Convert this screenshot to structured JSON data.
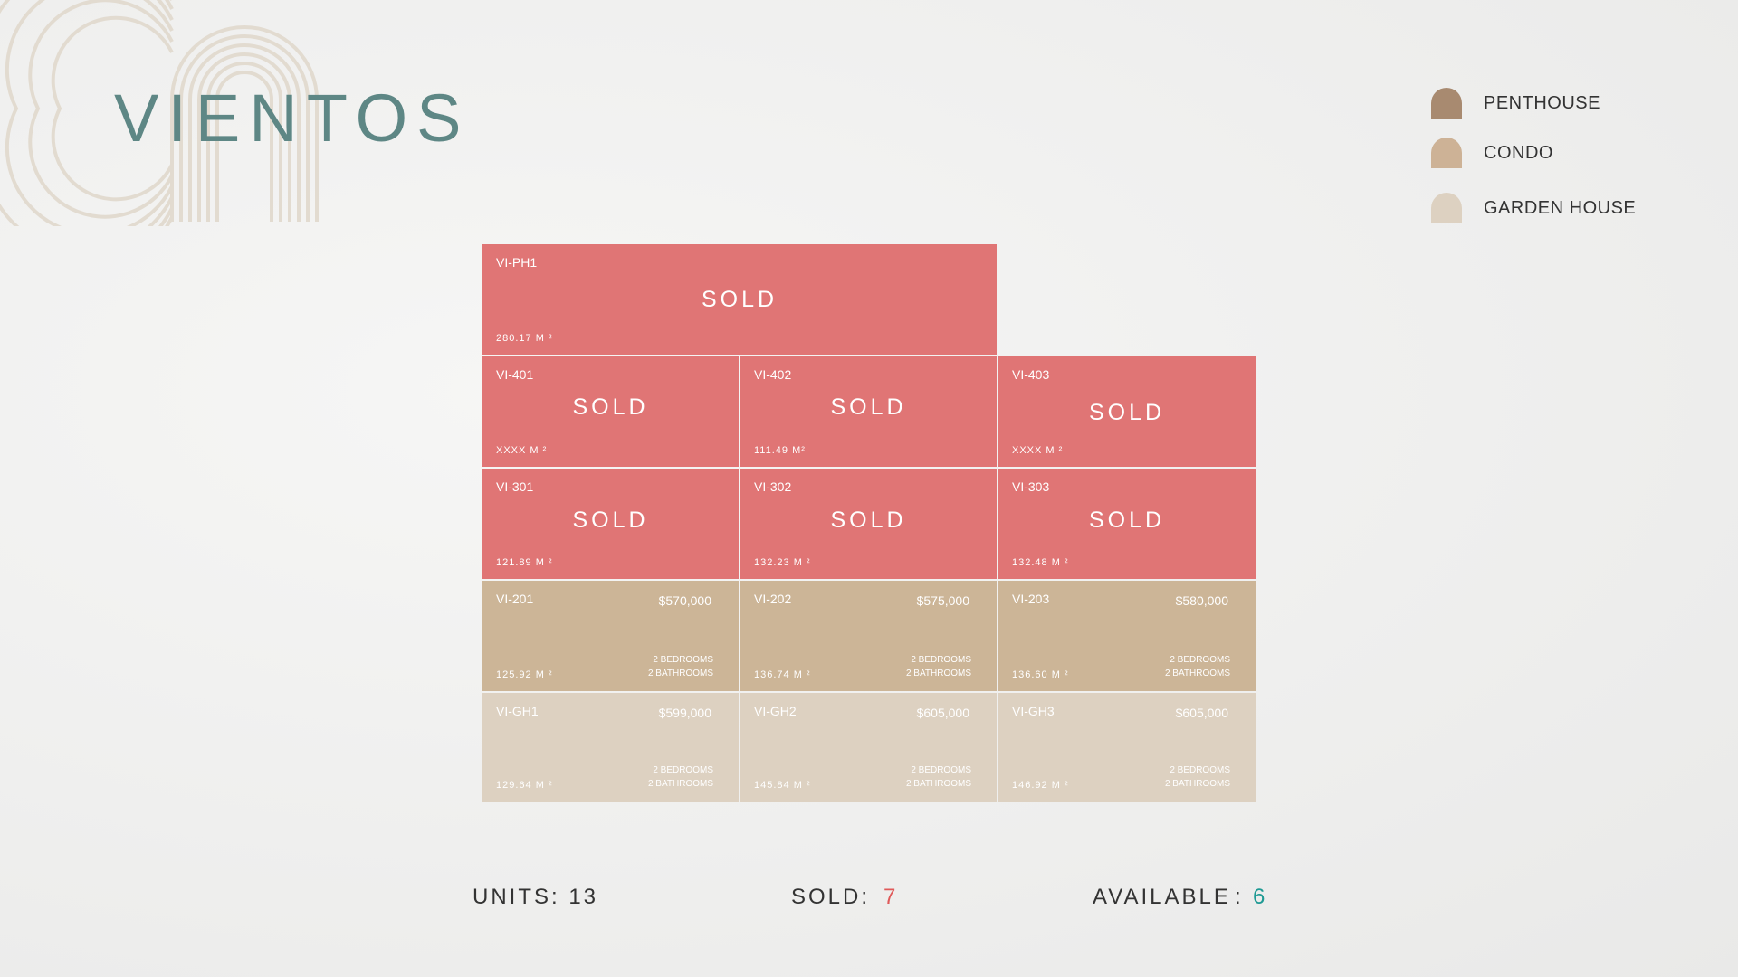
{
  "title": "VIENTOS",
  "colors": {
    "title": "#5e8785",
    "sold_unit": "#e07575",
    "condo_unit": "#ccb597",
    "garden_unit": "#ddd1c1",
    "sold_count": "#e05a5a",
    "available_count": "#1f9a94"
  },
  "legend": [
    {
      "label": "PENTHOUSE",
      "color": "#a88a70",
      "icon": "arch-swatch-icon"
    },
    {
      "label": "CONDO",
      "color": "#cdb296",
      "icon": "arch-swatch-icon"
    },
    {
      "label": "GARDEN HOUSE",
      "color": "#ddd1c1",
      "icon": "arch-swatch-icon"
    }
  ],
  "units": {
    "ph1": {
      "code": "VI-PH1",
      "status": "SOLD",
      "area": "280.17 M ²"
    },
    "u401": {
      "code": "VI-401",
      "status": "SOLD",
      "area": "XXXX M ²"
    },
    "u402": {
      "code": "VI-402",
      "status": "SOLD",
      "area": "111.49 M²"
    },
    "u403": {
      "code": "VI-403",
      "status": "SOLD",
      "area": "XXXX M ²"
    },
    "u301": {
      "code": "VI-301",
      "status": "SOLD",
      "area": "121.89 M ²"
    },
    "u302": {
      "code": "VI-302",
      "status": "SOLD",
      "area": "132.23 M ²"
    },
    "u303": {
      "code": "VI-303",
      "status": "SOLD",
      "area": "132.48 M ²"
    },
    "u201": {
      "code": "VI-201",
      "price": "$570,000",
      "area": "125.92 M ²",
      "bedrooms": "2 BEDROOMS",
      "bathrooms": "2 BATHROOMS"
    },
    "u202": {
      "code": "VI-202",
      "price": "$575,000",
      "area": "136.74 M ²",
      "bedrooms": "2 BEDROOMS",
      "bathrooms": "2 BATHROOMS"
    },
    "u203": {
      "code": "VI-203",
      "price": "$580,000",
      "area": "136.60 M ²",
      "bedrooms": "2 BEDROOMS",
      "bathrooms": "2 BATHROOMS"
    },
    "gh1": {
      "code": "VI-GH1",
      "price": "$599,000",
      "area": "129.64 M ²",
      "bedrooms": "2 BEDROOMS",
      "bathrooms": "2 BATHROOMS"
    },
    "gh2": {
      "code": "VI-GH2",
      "price": "$605,000",
      "area": "145.84 M ²",
      "bedrooms": "2 BEDROOMS",
      "bathrooms": "2 BATHROOMS"
    },
    "gh3": {
      "code": "VI-GH3",
      "price": "$605,000",
      "area": "146.92 M ²",
      "bedrooms": "2 BEDROOMS",
      "bathrooms": "2 BATHROOMS"
    }
  },
  "stats": {
    "units_label": "UNITS: 13",
    "sold_label": "SOLD:",
    "sold_value": "7",
    "available_label": "AVAILABLE",
    "available_sep": ":",
    "available_value": "6"
  }
}
